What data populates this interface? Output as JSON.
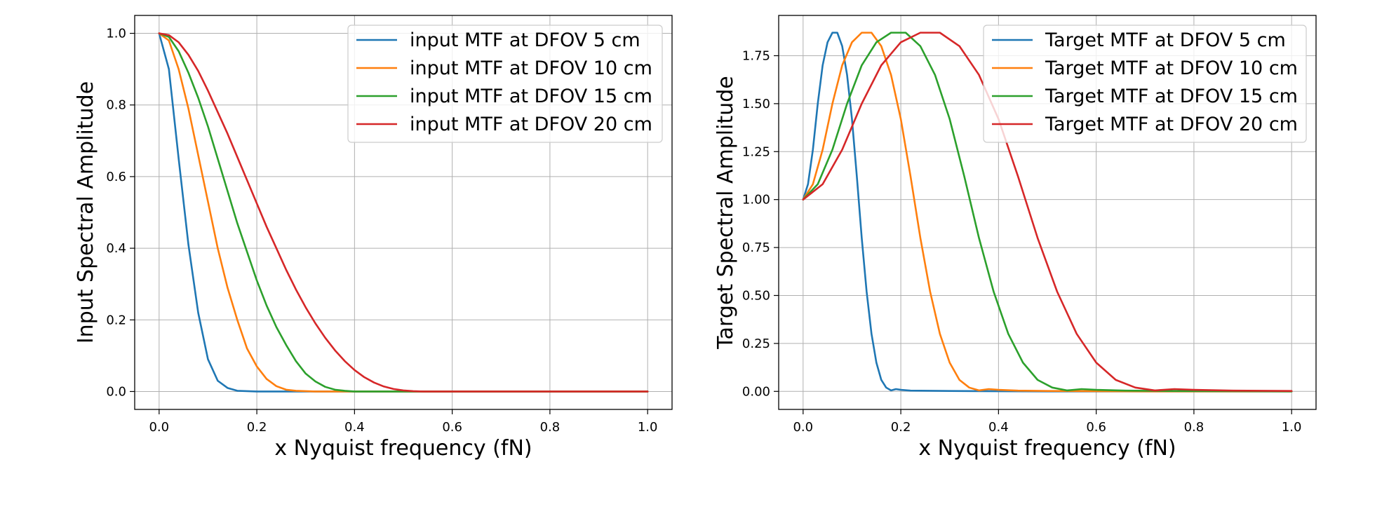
{
  "chart_data": [
    {
      "type": "line",
      "title": "",
      "xlabel": "x Nyquist frequency (fN)",
      "ylabel": "Input Spectral Amplitude",
      "xlim": [
        -0.05,
        1.05
      ],
      "ylim": [
        -0.05,
        1.05
      ],
      "xticks": [
        0.0,
        0.2,
        0.4,
        0.6,
        0.8,
        1.0
      ],
      "xtick_labels": [
        "0.0",
        "0.2",
        "0.4",
        "0.6",
        "0.8",
        "1.0"
      ],
      "yticks": [
        0.0,
        0.2,
        0.4,
        0.6,
        0.8,
        1.0
      ],
      "ytick_labels": [
        "0.0",
        "0.2",
        "0.4",
        "0.6",
        "0.8",
        "1.0"
      ],
      "grid": true,
      "legend_position": "top-right",
      "x": [
        0.0,
        0.02,
        0.04,
        0.06,
        0.08,
        0.1,
        0.12,
        0.14,
        0.16,
        0.18,
        0.2,
        0.22,
        0.24,
        0.26,
        0.28,
        0.3,
        0.32,
        0.34,
        0.36,
        0.38,
        0.4,
        0.42,
        0.44,
        0.46,
        0.48,
        0.5,
        0.52,
        0.54,
        0.56,
        0.58,
        0.6,
        0.62,
        0.64,
        0.66,
        0.68,
        0.7,
        0.75,
        0.8,
        0.85,
        0.9,
        0.95,
        1.0
      ],
      "series": [
        {
          "name": "input MTF at DFOV 5 cm",
          "color": "#1f77b4",
          "values": [
            1.0,
            0.9,
            0.65,
            0.41,
            0.22,
            0.09,
            0.03,
            0.01,
            0.002,
            0.001,
            0.0,
            0.0,
            0.0,
            0.0,
            0.0,
            0.0,
            0.0,
            0.0,
            0.0,
            0.0,
            0.0,
            0.0,
            0.0,
            0.0,
            0.0,
            0.0,
            0.0,
            0.0,
            0.0,
            0.0,
            0.0,
            0.0,
            0.0,
            0.0,
            0.0,
            0.0,
            0.0,
            0.0,
            0.0,
            0.0,
            0.0,
            0.0
          ]
        },
        {
          "name": "input MTF at DFOV 10 cm",
          "color": "#ff7f0e",
          "values": [
            1.0,
            0.98,
            0.9,
            0.79,
            0.66,
            0.53,
            0.4,
            0.29,
            0.2,
            0.12,
            0.07,
            0.035,
            0.015,
            0.005,
            0.002,
            0.001,
            0.0,
            0.0,
            0.0,
            0.0,
            0.0,
            0.0,
            0.0,
            0.0,
            0.0,
            0.0,
            0.0,
            0.0,
            0.0,
            0.0,
            0.0,
            0.0,
            0.0,
            0.0,
            0.0,
            0.0,
            0.0,
            0.0,
            0.0,
            0.0,
            0.0,
            0.0
          ]
        },
        {
          "name": "input MTF at DFOV 15 cm",
          "color": "#2ca02c",
          "values": [
            1.0,
            0.99,
            0.95,
            0.89,
            0.82,
            0.74,
            0.65,
            0.56,
            0.47,
            0.39,
            0.31,
            0.24,
            0.18,
            0.13,
            0.085,
            0.05,
            0.028,
            0.013,
            0.005,
            0.002,
            0.0,
            0.0,
            0.0,
            0.0,
            0.0,
            0.0,
            0.0,
            0.0,
            0.0,
            0.0,
            0.0,
            0.0,
            0.0,
            0.0,
            0.0,
            0.0,
            0.0,
            0.0,
            0.0,
            0.0,
            0.0,
            0.0
          ]
        },
        {
          "name": "input MTF at DFOV 20 cm",
          "color": "#d62728",
          "values": [
            1.0,
            0.995,
            0.975,
            0.94,
            0.895,
            0.84,
            0.78,
            0.72,
            0.655,
            0.59,
            0.525,
            0.46,
            0.4,
            0.34,
            0.285,
            0.235,
            0.19,
            0.15,
            0.115,
            0.085,
            0.06,
            0.04,
            0.025,
            0.014,
            0.007,
            0.003,
            0.001,
            0.0,
            0.0,
            0.0,
            0.0,
            0.0,
            0.0,
            0.0,
            0.0,
            0.0,
            0.0,
            0.0,
            0.0,
            0.0,
            0.0,
            0.0
          ]
        }
      ]
    },
    {
      "type": "line",
      "title": "",
      "xlabel": "x Nyquist frequency (fN)",
      "ylabel": "Target Spectral Amplitude",
      "xlim": [
        -0.05,
        1.05
      ],
      "ylim": [
        -0.094,
        1.96
      ],
      "xticks": [
        0.0,
        0.2,
        0.4,
        0.6,
        0.8,
        1.0
      ],
      "xtick_labels": [
        "0.0",
        "0.2",
        "0.4",
        "0.6",
        "0.8",
        "1.0"
      ],
      "yticks": [
        0.0,
        0.25,
        0.5,
        0.75,
        1.0,
        1.25,
        1.5,
        1.75
      ],
      "ytick_labels": [
        "0.00",
        "0.25",
        "0.50",
        "0.75",
        "1.00",
        "1.25",
        "1.50",
        "1.75"
      ],
      "grid": true,
      "legend_position": "top-right",
      "series": [
        {
          "name": "Target MTF at DFOV 5 cm",
          "color": "#1f77b4",
          "x": [
            0.0,
            0.01,
            0.02,
            0.03,
            0.04,
            0.05,
            0.06,
            0.07,
            0.08,
            0.09,
            0.1,
            0.11,
            0.12,
            0.13,
            0.14,
            0.15,
            0.16,
            0.17,
            0.18,
            0.19,
            0.2,
            0.22,
            0.3,
            0.5,
            0.7,
            1.0
          ],
          "values": [
            1.0,
            1.08,
            1.26,
            1.5,
            1.7,
            1.82,
            1.87,
            1.87,
            1.8,
            1.65,
            1.42,
            1.12,
            0.8,
            0.52,
            0.3,
            0.15,
            0.06,
            0.02,
            0.005,
            0.012,
            0.008,
            0.004,
            0.002,
            0.0,
            0.0,
            0.0
          ]
        },
        {
          "name": "Target MTF at DFOV 10 cm",
          "color": "#ff7f0e",
          "x": [
            0.0,
            0.02,
            0.04,
            0.06,
            0.08,
            0.1,
            0.12,
            0.14,
            0.16,
            0.18,
            0.2,
            0.22,
            0.24,
            0.26,
            0.28,
            0.3,
            0.32,
            0.34,
            0.36,
            0.38,
            0.4,
            0.44,
            0.5,
            0.7,
            1.0
          ],
          "values": [
            1.0,
            1.08,
            1.26,
            1.5,
            1.7,
            1.82,
            1.87,
            1.87,
            1.8,
            1.65,
            1.42,
            1.12,
            0.8,
            0.52,
            0.3,
            0.15,
            0.06,
            0.02,
            0.005,
            0.012,
            0.008,
            0.004,
            0.002,
            0.0,
            0.0
          ]
        },
        {
          "name": "Target MTF at DFOV 15 cm",
          "color": "#2ca02c",
          "x": [
            0.0,
            0.03,
            0.06,
            0.09,
            0.12,
            0.15,
            0.18,
            0.21,
            0.24,
            0.27,
            0.3,
            0.33,
            0.36,
            0.39,
            0.42,
            0.45,
            0.48,
            0.51,
            0.54,
            0.57,
            0.6,
            0.66,
            0.75,
            1.0
          ],
          "values": [
            1.0,
            1.08,
            1.26,
            1.5,
            1.7,
            1.82,
            1.87,
            1.87,
            1.8,
            1.65,
            1.42,
            1.12,
            0.8,
            0.52,
            0.3,
            0.15,
            0.06,
            0.02,
            0.005,
            0.012,
            0.008,
            0.004,
            0.002,
            0.0
          ]
        },
        {
          "name": "Target MTF at DFOV 20 cm",
          "color": "#d62728",
          "x": [
            0.0,
            0.04,
            0.08,
            0.12,
            0.16,
            0.2,
            0.24,
            0.28,
            0.32,
            0.36,
            0.4,
            0.44,
            0.48,
            0.52,
            0.56,
            0.6,
            0.64,
            0.68,
            0.72,
            0.76,
            0.8,
            0.88,
            1.0
          ],
          "values": [
            1.0,
            1.08,
            1.26,
            1.5,
            1.7,
            1.82,
            1.87,
            1.87,
            1.8,
            1.65,
            1.42,
            1.12,
            0.8,
            0.52,
            0.3,
            0.15,
            0.06,
            0.02,
            0.005,
            0.012,
            0.008,
            0.004,
            0.002
          ]
        }
      ]
    }
  ]
}
